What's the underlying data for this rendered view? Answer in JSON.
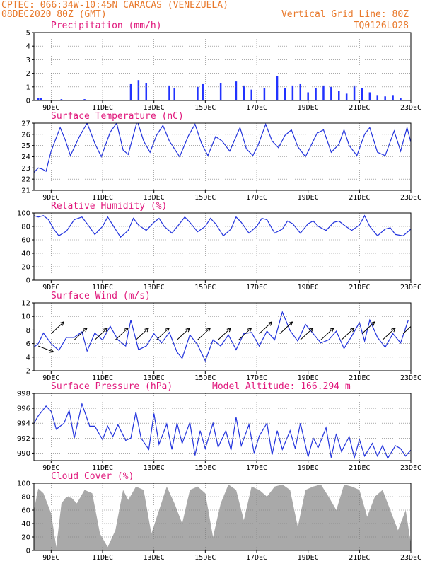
{
  "header": {
    "line1": "CPTEC:  066:34W-10:45N  CARACAS (VENEZUELA)",
    "line2_left": "08DEC2020 80Z (GMT)",
    "line2_right": "Vertical Grid Line: 80Z",
    "line3_right": "TQ0126L028"
  },
  "colors": {
    "header": "#e8782a",
    "title": "#e0187c",
    "line": "#2233dd",
    "bar": "#2233ff",
    "cloud": "#a9a9a9",
    "arrow": "#000000"
  },
  "x_axis": {
    "start_day": 8.33,
    "end_day": 23,
    "ticks": [
      {
        "day": 9,
        "label": "9DEC"
      },
      {
        "day": 11,
        "label": "11DEC"
      },
      {
        "day": 13,
        "label": "13DEC"
      },
      {
        "day": 15,
        "label": "15DEC"
      },
      {
        "day": 17,
        "label": "17DEC"
      },
      {
        "day": 19,
        "label": "19DEC"
      },
      {
        "day": 21,
        "label": "21DEC"
      },
      {
        "day": 23,
        "label": "23DEC"
      }
    ]
  },
  "chart_data": [
    {
      "type": "bar",
      "title": "Precipitation (mm/h)",
      "ylim": [
        0,
        5
      ],
      "yticks": [
        "0",
        "1",
        "2",
        "3",
        "4",
        "5"
      ],
      "x": [
        8.5,
        8.6,
        9.4,
        10.3,
        12.1,
        12.4,
        12.7,
        13.6,
        13.8,
        14.7,
        14.9,
        15.6,
        16.2,
        16.5,
        16.8,
        17.3,
        17.8,
        18.1,
        18.4,
        18.7,
        19.0,
        19.3,
        19.6,
        19.9,
        20.2,
        20.5,
        20.8,
        21.1,
        21.4,
        21.7,
        22.0,
        22.3,
        22.6
      ],
      "values": [
        0.2,
        0.2,
        0.1,
        0.1,
        1.2,
        1.5,
        1.3,
        1.1,
        0.9,
        1.0,
        1.2,
        1.3,
        1.4,
        1.1,
        0.8,
        0.9,
        1.8,
        0.9,
        1.1,
        1.2,
        0.6,
        0.9,
        1.1,
        1.0,
        0.7,
        0.5,
        1.1,
        0.9,
        0.6,
        0.4,
        0.3,
        0.4,
        0.2
      ]
    },
    {
      "type": "line",
      "title": "Surface Temperature (nC)",
      "ylim": [
        21,
        27
      ],
      "yticks": [
        "21",
        "22",
        "23",
        "24",
        "25",
        "26",
        "27"
      ],
      "x": [
        8.33,
        8.5,
        8.65,
        8.8,
        9.0,
        9.35,
        9.55,
        9.75,
        10.1,
        10.4,
        10.7,
        10.95,
        11.3,
        11.55,
        11.8,
        12.0,
        12.35,
        12.6,
        12.85,
        13.1,
        13.35,
        13.6,
        14.0,
        14.35,
        14.6,
        14.85,
        15.1,
        15.4,
        15.65,
        15.95,
        16.35,
        16.6,
        16.85,
        17.05,
        17.35,
        17.6,
        17.85,
        18.1,
        18.35,
        18.6,
        18.9,
        19.35,
        19.6,
        19.9,
        20.2,
        20.4,
        20.6,
        20.9,
        21.2,
        21.4,
        21.7,
        22.0,
        22.35,
        22.6,
        22.85,
        23.0
      ],
      "values": [
        22.6,
        23.0,
        22.9,
        22.7,
        24.5,
        26.6,
        25.5,
        24.1,
        25.8,
        27.0,
        25.2,
        24.0,
        26.2,
        27.0,
        24.6,
        24.2,
        27.2,
        25.4,
        24.4,
        25.9,
        26.8,
        25.4,
        24.0,
        25.9,
        26.9,
        25.2,
        24.1,
        25.8,
        25.4,
        24.5,
        26.6,
        24.7,
        24.1,
        25.0,
        26.9,
        25.4,
        24.8,
        25.9,
        26.4,
        24.9,
        24.0,
        26.1,
        26.4,
        24.4,
        25.1,
        26.4,
        25.0,
        24.1,
        26.0,
        26.6,
        24.4,
        24.1,
        26.3,
        24.5,
        26.6,
        25.3
      ]
    },
    {
      "type": "line",
      "title": "Relative Humidity (%)",
      "ylim": [
        0,
        100
      ],
      "yticks": [
        "0",
        "20",
        "40",
        "60",
        "80",
        "100"
      ],
      "x": [
        8.33,
        8.5,
        8.7,
        8.9,
        9.1,
        9.3,
        9.6,
        9.9,
        10.2,
        10.4,
        10.7,
        11.0,
        11.2,
        11.4,
        11.7,
        12.0,
        12.2,
        12.4,
        12.7,
        13.0,
        13.2,
        13.4,
        13.7,
        14.0,
        14.2,
        14.4,
        14.7,
        15.0,
        15.2,
        15.4,
        15.7,
        16.0,
        16.2,
        16.4,
        16.7,
        17.0,
        17.2,
        17.4,
        17.7,
        18.0,
        18.2,
        18.4,
        18.7,
        19.0,
        19.2,
        19.4,
        19.7,
        20.0,
        20.2,
        20.4,
        20.7,
        21.0,
        21.2,
        21.4,
        21.7,
        22.0,
        22.2,
        22.4,
        22.7,
        23.0
      ],
      "values": [
        96,
        94,
        96,
        90,
        76,
        66,
        73,
        90,
        94,
        84,
        68,
        80,
        94,
        82,
        64,
        74,
        92,
        82,
        74,
        86,
        92,
        80,
        70,
        84,
        94,
        86,
        72,
        80,
        92,
        84,
        66,
        76,
        94,
        86,
        70,
        80,
        92,
        90,
        70,
        76,
        88,
        84,
        70,
        84,
        88,
        80,
        74,
        86,
        88,
        82,
        74,
        82,
        96,
        80,
        66,
        76,
        78,
        68,
        66,
        76
      ]
    },
    {
      "type": "line",
      "title": "Surface Wind (m/s)",
      "ylim": [
        2,
        13
      ],
      "yticks": [
        "2",
        "4",
        "6",
        "8",
        "10",
        "12"
      ],
      "x": [
        8.33,
        8.5,
        8.7,
        9.0,
        9.3,
        9.6,
        9.9,
        10.2,
        10.4,
        10.7,
        11.0,
        11.3,
        11.6,
        11.9,
        12.1,
        12.4,
        12.7,
        13.0,
        13.3,
        13.6,
        13.9,
        14.1,
        14.4,
        14.7,
        15.0,
        15.3,
        15.6,
        15.9,
        16.2,
        16.5,
        16.8,
        17.1,
        17.4,
        17.7,
        18.0,
        18.3,
        18.6,
        18.9,
        19.2,
        19.5,
        19.8,
        20.1,
        20.4,
        20.7,
        21.0,
        21.2,
        21.4,
        21.7,
        22.0,
        22.3,
        22.6,
        22.9
      ],
      "values": [
        5.8,
        6.4,
        8.1,
        6.4,
        5.3,
        7.4,
        7.4,
        8.3,
        5.2,
        8.1,
        7.0,
        9.2,
        7.0,
        6.0,
        10.2,
        5.4,
        6.0,
        8.0,
        6.5,
        8.2,
        5.0,
        4.0,
        7.8,
        6.2,
        3.6,
        7.0,
        6.0,
        7.8,
        5.4,
        8.0,
        8.2,
        6.0,
        8.4,
        7.0,
        11.5,
        8.5,
        6.8,
        9.5,
        8.0,
        6.5,
        7.0,
        8.4,
        5.6,
        7.6,
        9.8,
        6.8,
        10.2,
        7.4,
        5.8,
        8.0,
        6.5,
        10.2
      ],
      "wind_vectors": [
        {
          "day": 8.5,
          "speed": 6,
          "dir": "SE"
        },
        {
          "day": 9.0,
          "speed": 8,
          "dir": "NE"
        },
        {
          "day": 9.9,
          "speed": 7,
          "dir": "NE"
        },
        {
          "day": 10.7,
          "speed": 7,
          "dir": "NE"
        },
        {
          "day": 11.5,
          "speed": 7,
          "dir": "NE"
        },
        {
          "day": 12.3,
          "speed": 7,
          "dir": "NE"
        },
        {
          "day": 13.1,
          "speed": 7,
          "dir": "NE"
        },
        {
          "day": 13.9,
          "speed": 7,
          "dir": "NE"
        },
        {
          "day": 14.7,
          "speed": 7,
          "dir": "NE"
        },
        {
          "day": 15.5,
          "speed": 7,
          "dir": "NE"
        },
        {
          "day": 16.3,
          "speed": 7,
          "dir": "NE"
        },
        {
          "day": 17.1,
          "speed": 8,
          "dir": "NE"
        },
        {
          "day": 17.9,
          "speed": 8,
          "dir": "NE"
        },
        {
          "day": 18.7,
          "speed": 7,
          "dir": "NE"
        },
        {
          "day": 19.5,
          "speed": 7,
          "dir": "NE"
        },
        {
          "day": 20.3,
          "speed": 7,
          "dir": "NE"
        },
        {
          "day": 21.1,
          "speed": 8,
          "dir": "NE"
        },
        {
          "day": 21.9,
          "speed": 7,
          "dir": "NE"
        },
        {
          "day": 22.7,
          "speed": 8,
          "dir": "NE"
        }
      ]
    },
    {
      "type": "line",
      "title": "Surface Pressure (hPa)",
      "subtitle": "Model Altitude: 166.294 m",
      "ylim": [
        989,
        998
      ],
      "yticks": [
        "990",
        "992",
        "994",
        "996",
        "998"
      ],
      "x": [
        8.33,
        8.5,
        8.8,
        9.0,
        9.2,
        9.5,
        9.7,
        9.9,
        10.2,
        10.5,
        10.7,
        11.0,
        11.2,
        11.4,
        11.6,
        11.9,
        12.1,
        12.3,
        12.5,
        12.8,
        13.0,
        13.2,
        13.5,
        13.7,
        13.9,
        14.1,
        14.4,
        14.6,
        14.8,
        15.0,
        15.3,
        15.5,
        15.8,
        16.0,
        16.2,
        16.4,
        16.7,
        16.9,
        17.1,
        17.4,
        17.6,
        17.8,
        18.0,
        18.3,
        18.5,
        18.7,
        19.0,
        19.2,
        19.4,
        19.7,
        19.9,
        20.1,
        20.3,
        20.6,
        20.8,
        21.0,
        21.2,
        21.5,
        21.7,
        21.9,
        22.1,
        22.4,
        22.6,
        22.8,
        23.0
      ],
      "values": [
        994.0,
        995.0,
        996.3,
        995.6,
        993.2,
        994.0,
        995.7,
        992.0,
        996.6,
        993.6,
        993.6,
        991.8,
        993.6,
        992.2,
        993.8,
        991.7,
        992.0,
        995.5,
        992.0,
        990.5,
        995.3,
        991.2,
        993.9,
        990.5,
        994.0,
        991.3,
        994.1,
        989.7,
        993.0,
        990.6,
        994.0,
        990.8,
        993.0,
        990.4,
        994.8,
        991.0,
        993.8,
        990.0,
        992.3,
        994.0,
        989.8,
        993.0,
        990.5,
        993.0,
        990.6,
        994.0,
        989.5,
        992.0,
        990.8,
        993.4,
        989.4,
        992.6,
        990.2,
        992.2,
        989.4,
        991.8,
        989.6,
        991.3,
        989.6,
        991.0,
        989.3,
        991.0,
        990.6,
        989.6,
        990.4
      ]
    },
    {
      "type": "area",
      "title": "Cloud Cover (%)",
      "ylim": [
        0,
        100
      ],
      "yticks": [
        "0",
        "20",
        "40",
        "60",
        "80",
        "100"
      ],
      "x": [
        8.33,
        8.5,
        8.7,
        9.0,
        9.2,
        9.4,
        9.6,
        9.8,
        10.0,
        10.3,
        10.6,
        10.9,
        11.2,
        11.5,
        11.8,
        12.0,
        12.3,
        12.6,
        12.9,
        13.2,
        13.5,
        13.8,
        14.1,
        14.4,
        14.7,
        15.0,
        15.3,
        15.6,
        15.9,
        16.2,
        16.5,
        16.8,
        17.1,
        17.4,
        17.7,
        18.0,
        18.3,
        18.6,
        18.9,
        19.2,
        19.5,
        19.8,
        20.1,
        20.4,
        20.7,
        21.0,
        21.3,
        21.6,
        21.9,
        22.2,
        22.5,
        22.8,
        23.0
      ],
      "values": [
        60,
        92,
        85,
        55,
        5,
        70,
        80,
        78,
        70,
        90,
        85,
        25,
        5,
        30,
        90,
        75,
        95,
        90,
        25,
        60,
        95,
        70,
        40,
        90,
        95,
        85,
        20,
        70,
        98,
        90,
        45,
        95,
        90,
        80,
        95,
        98,
        90,
        35,
        90,
        95,
        98,
        80,
        60,
        98,
        95,
        90,
        50,
        80,
        90,
        60,
        30,
        60,
        10
      ]
    }
  ]
}
